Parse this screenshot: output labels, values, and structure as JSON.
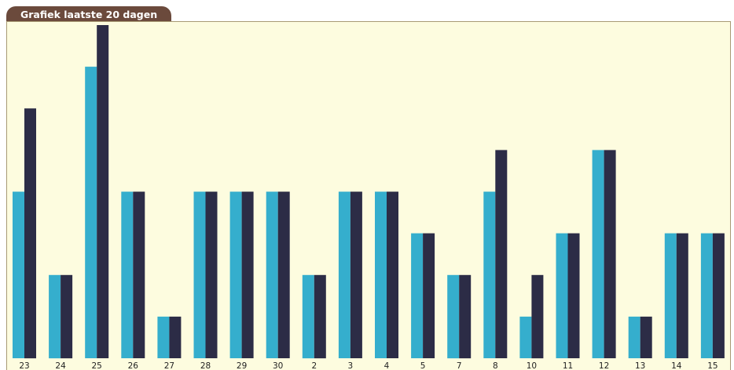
{
  "title": "Grafiek laatste 20 dagen",
  "colors": {
    "series1": "#35aecd",
    "series2": "#2c2c46",
    "background": "#fdfcdf",
    "tab": "#6b4a3c"
  },
  "chart_data": {
    "type": "bar",
    "title": "Grafiek laatste 20 dagen",
    "xlabel": "",
    "ylabel": "",
    "grid": false,
    "legend": "none",
    "categories": [
      "23",
      "24",
      "25",
      "26",
      "27",
      "28",
      "29",
      "30",
      "2",
      "3",
      "4",
      "5",
      "7",
      "8",
      "10",
      "11",
      "12",
      "13",
      "14",
      "15"
    ],
    "series": [
      {
        "values": [
          4,
          2,
          7,
          4,
          1,
          4,
          4,
          4,
          2,
          4,
          4,
          3,
          2,
          4,
          1,
          3,
          5,
          1,
          3,
          3
        ]
      },
      {
        "values": [
          6,
          2,
          8,
          4,
          1,
          4,
          4,
          4,
          2,
          4,
          4,
          3,
          2,
          5,
          2,
          3,
          5,
          1,
          3,
          3
        ]
      }
    ],
    "ylim": [
      0,
      8
    ]
  }
}
